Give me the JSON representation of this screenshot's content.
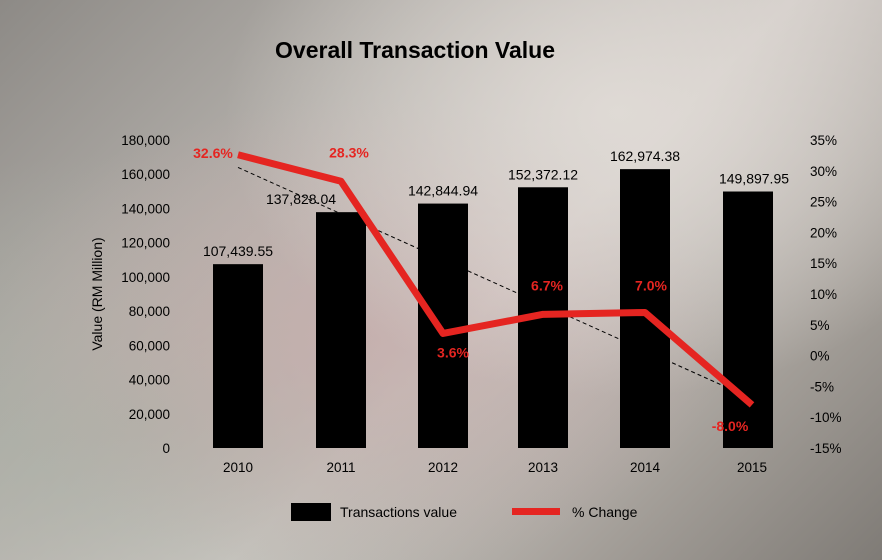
{
  "chart_data": {
    "type": "bar",
    "title": "Overall Transaction Value",
    "categories": [
      "2010",
      "2011",
      "2012",
      "2013",
      "2014",
      "2015"
    ],
    "ylabel": "Value (RM Million)",
    "ylim": [
      0,
      180000
    ],
    "yticks": [
      "0",
      "20,000",
      "40,000",
      "60,000",
      "80,000",
      "100,000",
      "120,000",
      "140,000",
      "160,000",
      "180,000"
    ],
    "y2lim": [
      -15,
      35
    ],
    "y2ticks": [
      "-15%",
      "-10%",
      "-5%",
      "0%",
      "5%",
      "10%",
      "15%",
      "20%",
      "25%",
      "30%",
      "35%"
    ],
    "series": [
      {
        "name": "Transactions value",
        "type": "bar",
        "color": "#000000",
        "values": [
          107439.55,
          137828.04,
          142844.94,
          152372.12,
          162974.38,
          149897.95
        ],
        "labels": [
          "107,439.55",
          "137,828.04",
          "142,844.94",
          "152,372.12",
          "162,974.38",
          "149,897.95"
        ]
      },
      {
        "name": "% Change",
        "type": "line",
        "axis": "right",
        "color": "#e52521",
        "values": [
          32.6,
          28.3,
          3.6,
          6.7,
          7.0,
          -8.0
        ],
        "labels": [
          "32.6%",
          "28.3%",
          "3.6%",
          "6.7%",
          "7.0%",
          "-8.0%"
        ],
        "trendline": "linear"
      }
    ],
    "legend": "bottom",
    "grid": false
  }
}
